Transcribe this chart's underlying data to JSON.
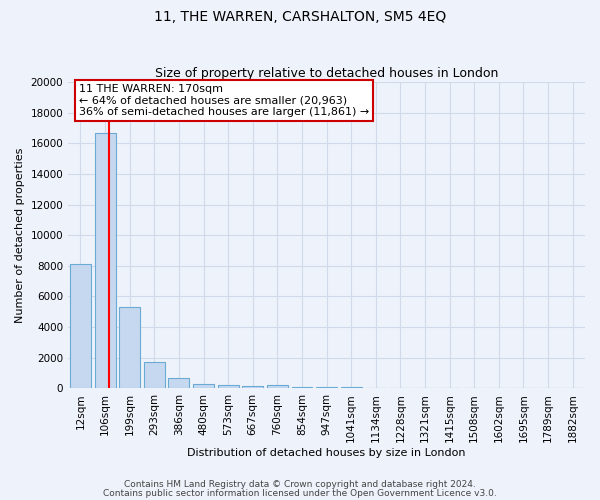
{
  "title": "11, THE WARREN, CARSHALTON, SM5 4EQ",
  "subtitle": "Size of property relative to detached houses in London",
  "xlabel": "Distribution of detached houses by size in London",
  "ylabel": "Number of detached properties",
  "categories": [
    "12sqm",
    "106sqm",
    "199sqm",
    "293sqm",
    "386sqm",
    "480sqm",
    "573sqm",
    "667sqm",
    "760sqm",
    "854sqm",
    "947sqm",
    "1041sqm",
    "1134sqm",
    "1228sqm",
    "1321sqm",
    "1415sqm",
    "1508sqm",
    "1602sqm",
    "1695sqm",
    "1789sqm",
    "1882sqm"
  ],
  "values": [
    8100,
    16700,
    5300,
    1700,
    700,
    300,
    250,
    150,
    200,
    100,
    80,
    60,
    50,
    40,
    30,
    25,
    20,
    18,
    15,
    12,
    10
  ],
  "bar_color": "#c5d8f0",
  "bar_edge_color": "#6aaad4",
  "annotation_label": "11 THE WARREN: 170sqm",
  "annotation_line1": "← 64% of detached houses are smaller (20,963)",
  "annotation_line2": "36% of semi-detached houses are larger (11,861) →",
  "annotation_box_color": "#ffffff",
  "annotation_box_edge": "#cc0000",
  "ylim": [
    0,
    20000
  ],
  "yticks": [
    0,
    2000,
    4000,
    6000,
    8000,
    10000,
    12000,
    14000,
    16000,
    18000,
    20000
  ],
  "footnote1": "Contains HM Land Registry data © Crown copyright and database right 2024.",
  "footnote2": "Contains public sector information licensed under the Open Government Licence v3.0.",
  "background_color": "#eef2fa",
  "grid_color": "#d0daea",
  "title_fontsize": 10,
  "subtitle_fontsize": 9,
  "axis_label_fontsize": 8,
  "tick_fontsize": 7.5,
  "annotation_fontsize": 8,
  "footnote_fontsize": 6.5
}
